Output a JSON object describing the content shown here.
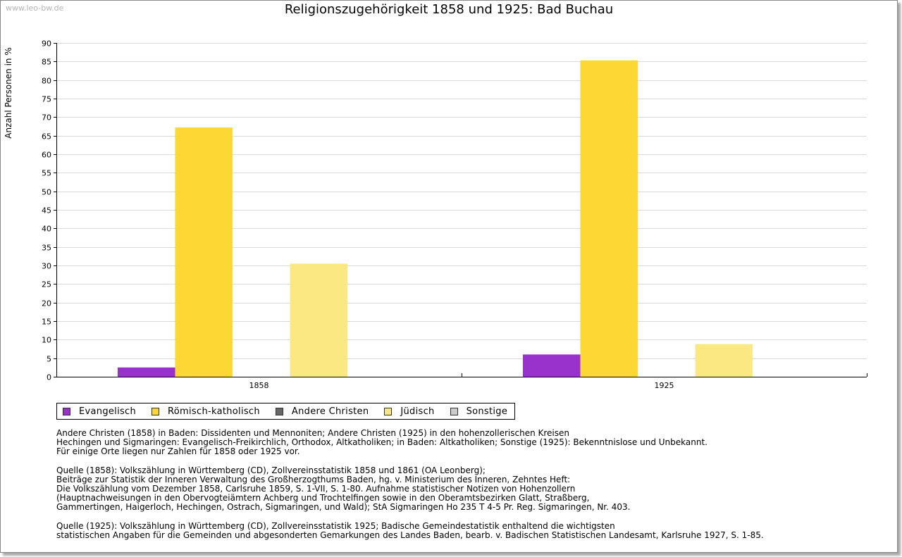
{
  "watermark": "www.leo-bw.de",
  "chart_data": {
    "type": "bar",
    "title": "Religionszugehörigkeit 1858 und 1925: Bad Buchau",
    "xlabel": "",
    "ylabel": "Anzahl Personen in %",
    "ylim": [
      0,
      90
    ],
    "yticks": [
      0,
      5,
      10,
      15,
      20,
      25,
      30,
      35,
      40,
      45,
      50,
      55,
      60,
      65,
      70,
      75,
      80,
      85,
      90
    ],
    "yticklabels": [
      "0",
      "5",
      "10",
      "15",
      "20",
      "25",
      "30",
      "35",
      "40",
      "45",
      "50",
      "55",
      "60",
      "65",
      "70",
      "75",
      "80",
      "85",
      "90"
    ],
    "grid": true,
    "legend_position": "bottom",
    "categories": [
      "1858",
      "1925"
    ],
    "series": [
      {
        "name": "Evangelisch",
        "color": "#9932cc",
        "values": [
          2.5,
          6.0
        ]
      },
      {
        "name": "Römisch-katholisch",
        "color": "#fdd835",
        "values": [
          67.2,
          85.3
        ]
      },
      {
        "name": "Andere Christen",
        "color": "#666666",
        "values": [
          0,
          0
        ]
      },
      {
        "name": "Jüdisch",
        "color": "#fce883",
        "values": [
          30.5,
          8.8
        ]
      },
      {
        "name": "Sonstige",
        "color": "#cccccc",
        "values": [
          0,
          0
        ]
      }
    ]
  },
  "notes": [
    [
      "Andere Christen (1858) in Baden: Dissidenten und Mennoniten; Andere Christen (1925) in den hohenzollerischen Kreisen",
      "Hechingen und Sigmaringen: Evangelisch-Freikirchlich, Orthodox, Altkatholiken; in Baden: Altkatholiken; Sonstige (1925): Bekenntnislose und Unbekannt.",
      "Für einige Orte liegen nur Zahlen für 1858 oder 1925 vor."
    ],
    [
      "Quelle (1858): Volkszählung in Württemberg (CD), Zollvereinsstatistik 1858 und 1861 (OA Leonberg);",
      "Beiträge zur Statistik der Inneren Verwaltung des Großherzogthums Baden, hg. v. Ministerium des Inneren, Zehntes Heft:",
      "Die Volkszählung vom Dezember 1858, Carlsruhe 1859, S. 1-VII, S. 1-80. Aufnahme statistischer Notizen von Hohenzollern",
      "(Hauptnachweisungen in den Obervogteiämtern Achberg und Trochtelfingen sowie in den Oberamtsbezirken Glatt, Straßberg,",
      "Gammertingen, Haigerloch, Hechingen, Ostrach, Sigmaringen, und Wald); StA Sigmaringen Ho 235 T 4-5 Pr. Reg. Sigmaringen, Nr. 403."
    ],
    [
      "Quelle (1925): Volkszählung in Württemberg (CD), Zollvereinsstatistik 1925; Badische Gemeindestatistik enthaltend die wichtigsten",
      "statistischen Angaben für die Gemeinden und abgesonderten Gemarkungen des Landes Baden, bearb. v. Badischen Statistischen Landesamt, Karlsruhe 1927, S. 1-85."
    ]
  ]
}
